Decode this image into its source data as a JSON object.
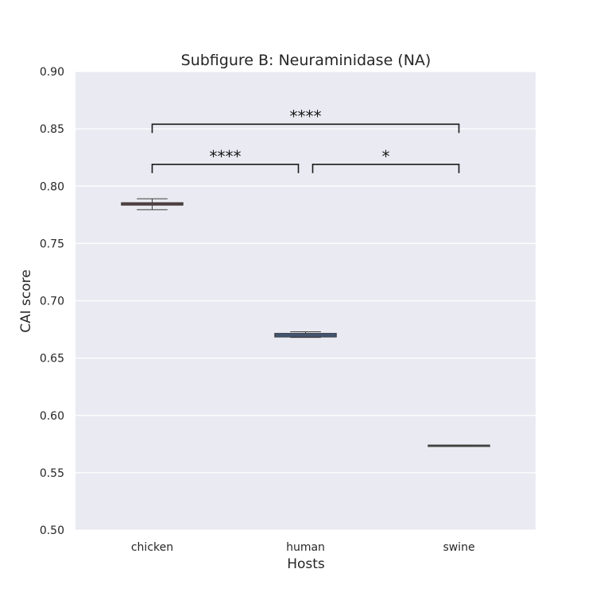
{
  "chart_data": {
    "type": "box",
    "title": "Subfigure B: Neuraminidase (NA)",
    "xlabel": "Hosts",
    "ylabel": "CAI score",
    "ylim": [
      0.5,
      0.9
    ],
    "yticks": [
      "0.50",
      "0.55",
      "0.60",
      "0.65",
      "0.70",
      "0.75",
      "0.80",
      "0.85",
      "0.90"
    ],
    "grid": true,
    "categories": [
      "chicken",
      "human",
      "swine"
    ],
    "boxes": [
      {
        "category": "chicken",
        "whisker_low": 0.7795,
        "q1": 0.7835,
        "median": 0.7845,
        "q3": 0.7855,
        "whisker_high": 0.789,
        "color": "#c44e52"
      },
      {
        "category": "human",
        "whisker_low": 0.668,
        "q1": 0.6685,
        "median": 0.67,
        "q3": 0.6715,
        "whisker_high": 0.673,
        "color": "#4c72b0"
      },
      {
        "category": "swine",
        "whisker_low": 0.574,
        "q1": 0.574,
        "median": 0.574,
        "q3": 0.574,
        "whisker_high": 0.574,
        "color": "#55a868"
      }
    ],
    "significance": [
      {
        "from": "chicken",
        "to": "human",
        "label": "****",
        "level": 0.819
      },
      {
        "from": "human",
        "to": "swine",
        "label": "*",
        "level": 0.819
      },
      {
        "from": "chicken",
        "to": "swine",
        "label": "****",
        "level": 0.854
      }
    ],
    "colors": {
      "plot_background": "#eaeaf2",
      "grid": "#ffffff",
      "edge": "#3d3d3d"
    }
  }
}
